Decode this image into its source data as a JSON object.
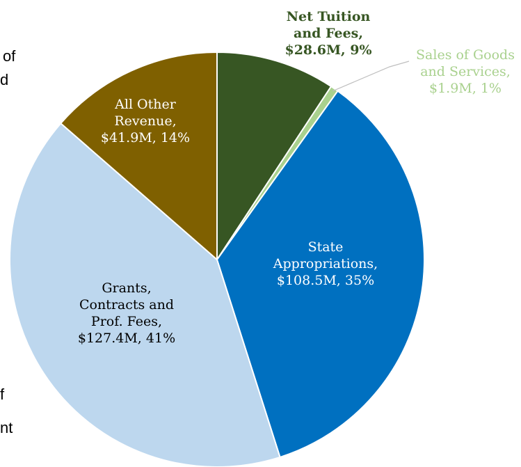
{
  "page_fragments": [
    "of",
    "d",
    "f",
    "nt"
  ],
  "chart_data": {
    "type": "pie",
    "title": "",
    "unit": "$M",
    "start_angle_deg": 0,
    "direction": "clockwise",
    "slices": [
      {
        "name": "Net Tuition and Fees",
        "value": 28.6,
        "percent": 9,
        "color": "#375623",
        "label_lines": [
          "Net Tuition",
          "and Fees,",
          "$28.6M, 9%"
        ],
        "label_color": "#375623"
      },
      {
        "name": "Sales of Goods and Services",
        "value": 1.9,
        "percent": 1,
        "color": "#a9d18e",
        "label_lines": [
          "Sales of Goods",
          "and Services,",
          "$1.9M, 1%"
        ],
        "label_color": "#a9d18e"
      },
      {
        "name": "State Appropriations",
        "value": 108.5,
        "percent": 35,
        "color": "#0070c0",
        "label_lines": [
          "State",
          "Appropriations,",
          "$108.5M, 35%"
        ],
        "label_color": "#ffffff"
      },
      {
        "name": "Grants, Contracts and Prof. Fees",
        "value": 127.4,
        "percent": 41,
        "color": "#bdd7ee",
        "label_lines": [
          "Grants,",
          "Contracts and",
          "Prof. Fees,",
          "$127.4M, 41%"
        ],
        "label_color": "#000000"
      },
      {
        "name": "All Other Revenue",
        "value": 41.9,
        "percent": 14,
        "color": "#7f6000",
        "label_lines": [
          "All Other",
          "Revenue,",
          "$41.9M, 14%"
        ],
        "label_color": "#ffffff"
      }
    ]
  }
}
